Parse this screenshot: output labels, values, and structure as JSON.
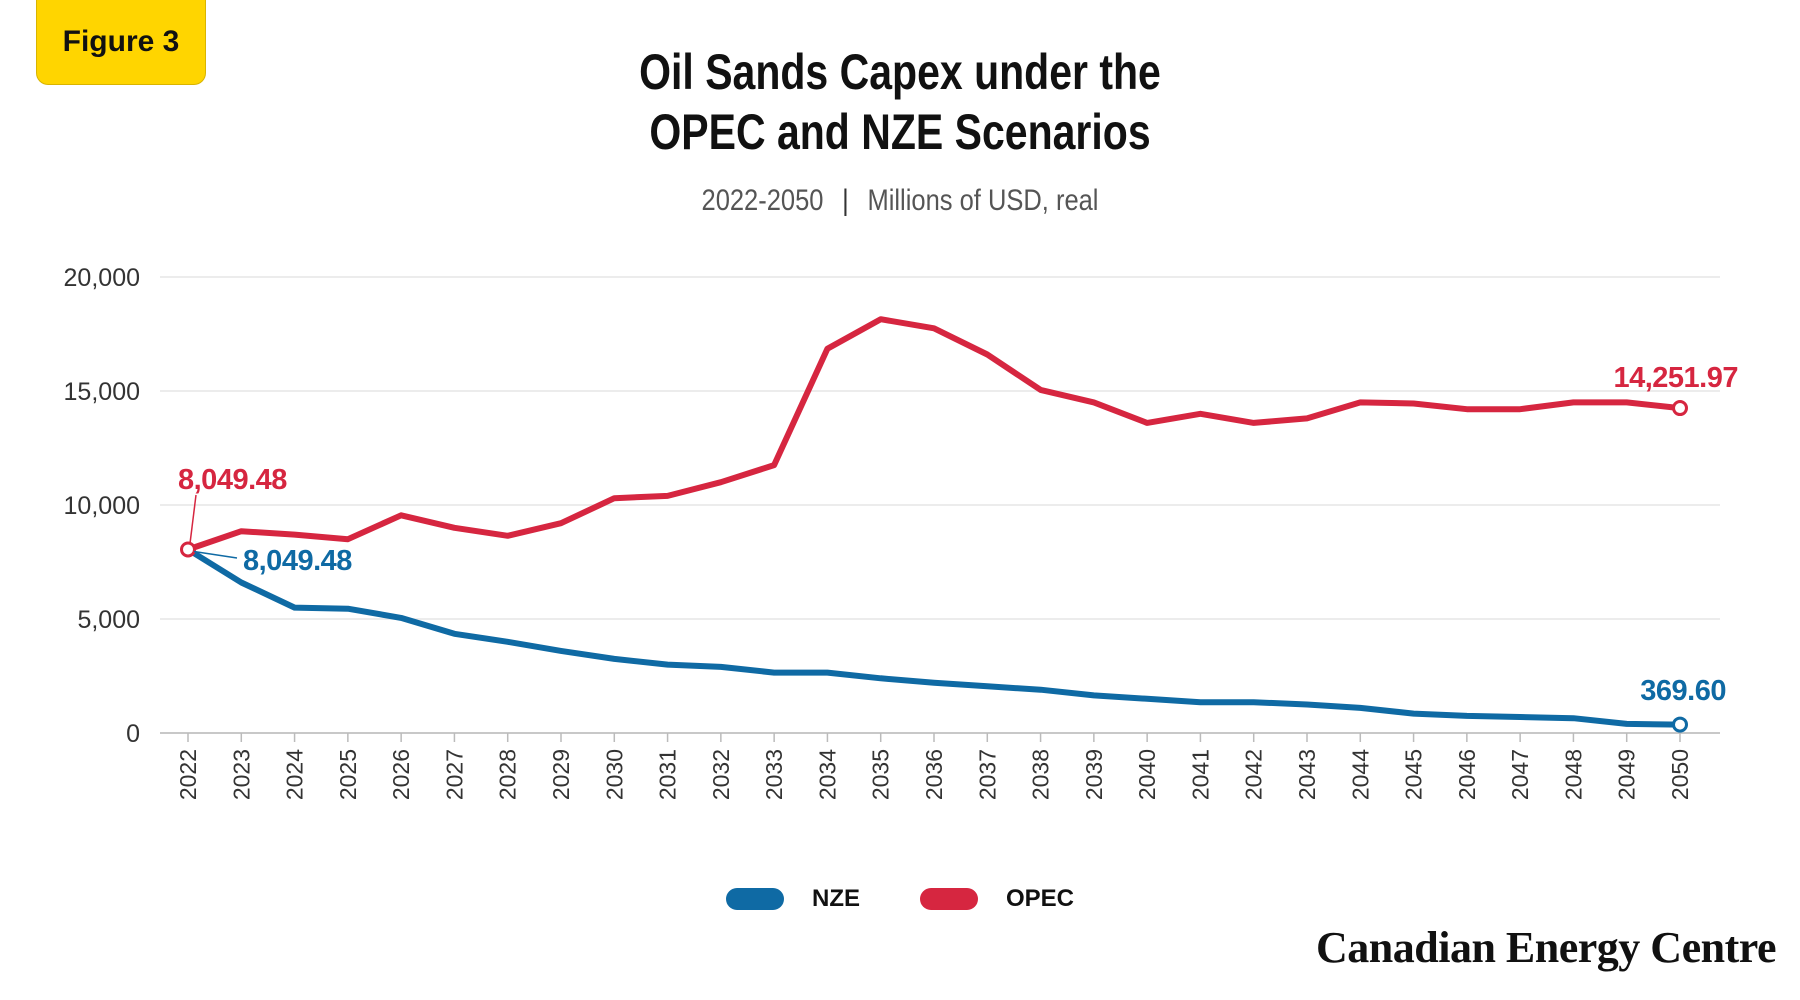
{
  "figure_badge": "Figure 3",
  "title_line1": "Oil Sands Capex under the",
  "title_line2": "OPEC and NZE Scenarios",
  "subtitle_range": "2022-2050",
  "subtitle_units": "Millions of USD, real",
  "brand": "Canadian Energy Centre",
  "colors": {
    "NZE": "#0F6AA4",
    "OPEC": "#D62640",
    "badge": "#FFD500"
  },
  "chart_data": {
    "type": "line",
    "x": [
      "2022",
      "2023",
      "2024",
      "2025",
      "2026",
      "2027",
      "2028",
      "2029",
      "2030",
      "2031",
      "2032",
      "2033",
      "2034",
      "2035",
      "2036",
      "2037",
      "2038",
      "2039",
      "2040",
      "2041",
      "2042",
      "2043",
      "2044",
      "2045",
      "2046",
      "2047",
      "2048",
      "2049",
      "2050"
    ],
    "series": [
      {
        "name": "NZE",
        "values": [
          8049.48,
          6600,
          5500,
          5450,
          5050,
          4350,
          4000,
          3600,
          3250,
          3000,
          2900,
          2650,
          2650,
          2400,
          2200,
          2050,
          1900,
          1650,
          1500,
          1350,
          1350,
          1250,
          1100,
          850,
          750,
          700,
          650,
          400,
          369.6
        ]
      },
      {
        "name": "OPEC",
        "values": [
          8049.48,
          8850,
          8700,
          8500,
          9550,
          9000,
          8650,
          9200,
          10300,
          10400,
          11000,
          11750,
          16850,
          18150,
          17750,
          16600,
          15050,
          14500,
          13600,
          14000,
          13600,
          13800,
          14500,
          14450,
          14200,
          14200,
          14500,
          14500,
          14251.97
        ]
      }
    ],
    "ylim": [
      0,
      20000
    ],
    "yticks": [
      "0",
      "5,000",
      "10,000",
      "15,000",
      "20,000"
    ],
    "ytick_values": [
      0,
      5000,
      10000,
      15000,
      20000
    ],
    "annotations": {
      "NZE_start": "8,049.48",
      "NZE_end": "369.60",
      "OPEC_start": "8,049.48",
      "OPEC_end": "14,251.97"
    },
    "legend_position": "bottom-center",
    "grid": true
  }
}
